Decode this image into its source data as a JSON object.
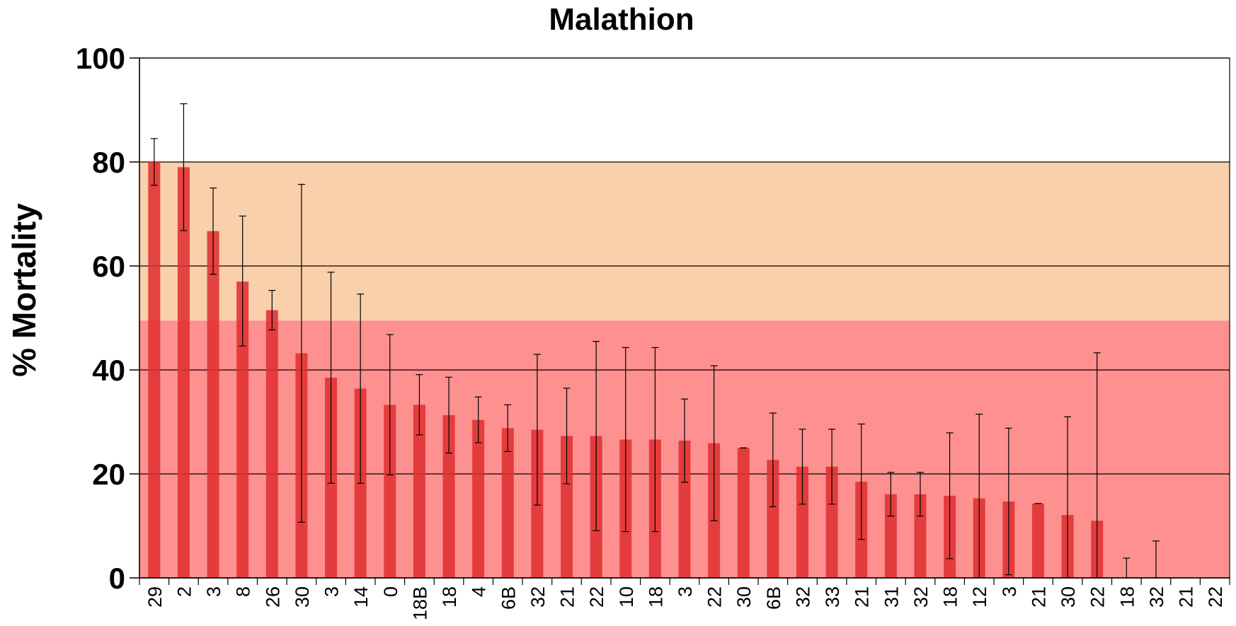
{
  "chart_data": {
    "type": "bar",
    "title": "Malathion",
    "ylabel": "% Mortality",
    "xlabel": "",
    "ylim": [
      0,
      100
    ],
    "yticks": [
      "0",
      "20",
      "40",
      "60",
      "80",
      "100"
    ],
    "grid": "horizontal",
    "legend": "none",
    "bands": [
      {
        "from": 0,
        "to": 49.5,
        "color": "#fe9090"
      },
      {
        "from": 49.5,
        "to": 80,
        "color": "#f9cfac"
      }
    ],
    "categories": [
      "29",
      "2",
      "3",
      "8",
      "26",
      "30",
      "3",
      "14",
      "0",
      "18B",
      "18",
      "4",
      "6B",
      "32",
      "21",
      "22",
      "10",
      "18",
      "3",
      "22",
      "30",
      "6B",
      "32",
      "33",
      "21",
      "31",
      "32",
      "18",
      "12",
      "3",
      "21",
      "30",
      "22",
      "18",
      "32",
      "21",
      "22"
    ],
    "values": [
      80,
      79,
      66.7,
      57,
      51.5,
      43.2,
      38.5,
      36.4,
      33.3,
      33.3,
      31.3,
      30.4,
      28.8,
      28.5,
      27.3,
      27.3,
      26.6,
      26.6,
      26.4,
      25.9,
      25,
      22.7,
      21.4,
      21.4,
      18.5,
      16.1,
      16.1,
      15.8,
      15.3,
      14.7,
      14.3,
      12.1,
      11,
      0,
      0,
      0,
      0
    ],
    "error_upper": [
      84.5,
      91.2,
      75,
      69.6,
      55.3,
      75.7,
      58.8,
      54.6,
      46.8,
      39.1,
      38.6,
      34.8,
      33.3,
      43,
      36.5,
      45.5,
      44.3,
      44.3,
      34.4,
      40.8,
      25,
      31.7,
      28.6,
      28.6,
      29.6,
      20.3,
      20.3,
      27.9,
      31.5,
      28.8,
      14.3,
      31,
      43.3,
      3.8,
      7.1,
      0,
      0
    ],
    "error_lower": [
      75.5,
      66.8,
      58.4,
      44.6,
      47.7,
      10.7,
      18.2,
      18.2,
      19.8,
      27.5,
      24,
      26,
      24.3,
      14,
      18.1,
      9.1,
      8.9,
      8.9,
      18.4,
      11,
      25,
      13.7,
      14.2,
      14.2,
      7.4,
      11.9,
      11.9,
      3.7,
      0,
      0.6,
      14.3,
      0,
      0,
      0,
      0,
      0,
      0
    ],
    "bar_color": "#e03030",
    "colors": {
      "bar": "#e03030",
      "band_low": "#fe9090",
      "band_mid": "#f9cfac",
      "grid": "#000000"
    }
  }
}
